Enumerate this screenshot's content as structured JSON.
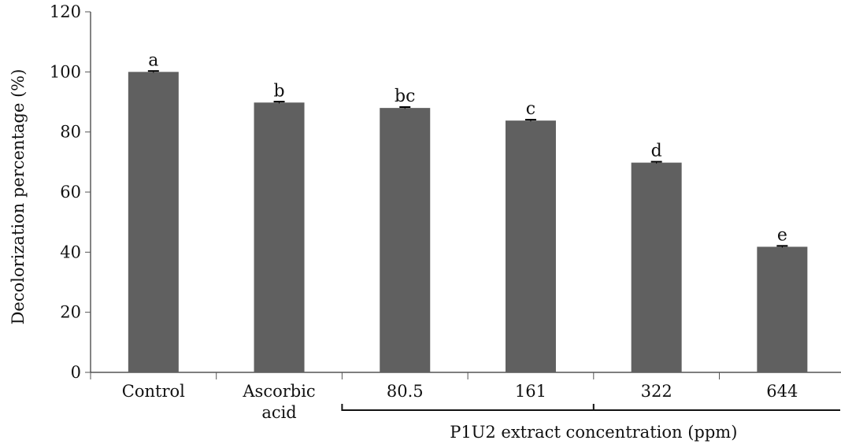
{
  "chart_data": {
    "type": "bar",
    "categories": [
      "Control",
      "Ascorbic acid",
      "80.5",
      "161",
      "322",
      "644"
    ],
    "category_lines": [
      [
        "Control"
      ],
      [
        "Ascorbic",
        "acid"
      ],
      [
        "80.5"
      ],
      [
        "161"
      ],
      [
        "322"
      ],
      [
        "644"
      ]
    ],
    "values": [
      100,
      89.8,
      88,
      83.8,
      69.8,
      41.8
    ],
    "error": [
      0.3,
      0.3,
      0.3,
      0.3,
      0.3,
      0.3
    ],
    "significance_letters": [
      "a",
      "b",
      "bc",
      "c",
      "d",
      "e"
    ],
    "ylabel": "Decolorization percentage (%)",
    "ylim": [
      0,
      120
    ],
    "yticks": [
      "0",
      "20",
      "40",
      "60",
      "80",
      "100",
      "120"
    ],
    "group_label": "P1U2 extract concentration (ppm)",
    "group_range": [
      2,
      5
    ],
    "bar_color": "#606060",
    "grid": false,
    "legend": "none"
  }
}
